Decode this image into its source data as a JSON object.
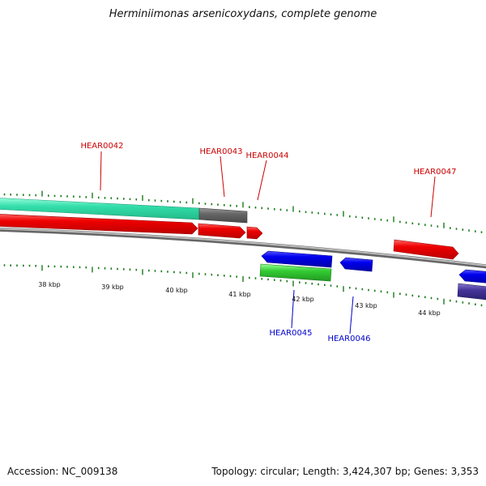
{
  "title": "Herminiimonas arsenicoxydans, complete genome",
  "footer": {
    "accession": "Accession: NC_009138",
    "summary": "Topology: circular; Length: 3,424,307 bp; Genes: 3,353"
  },
  "colors": {
    "backbone": "#8a8a8a",
    "tick": "#1a7a1a",
    "forward_label": "#cc0000",
    "reverse_label": "#0000cc",
    "cds_red": "#ee0000",
    "cds_blue": "#0000ee",
    "cds_gray": "#666666",
    "cds_teal": "#33ddaa",
    "cds_green": "#33cc33",
    "cds_purple": "#443399"
  },
  "scale": {
    "kbp_labels": [
      "38 kbp",
      "39 kbp",
      "40 kbp",
      "41 kbp",
      "42 kbp",
      "43 kbp",
      "44 kbp"
    ]
  },
  "genes_forward": [
    {
      "id": "HEAR0042",
      "color": "cds_red"
    },
    {
      "id": "HEAR0043",
      "color": "cds_red"
    },
    {
      "id": "HEAR0044",
      "color": "cds_red"
    },
    {
      "id": "HEAR0047",
      "color": "cds_red"
    }
  ],
  "genes_reverse": [
    {
      "id": "HEAR0045",
      "color": "cds_blue"
    },
    {
      "id": "HEAR0046",
      "color": "cds_blue"
    }
  ]
}
